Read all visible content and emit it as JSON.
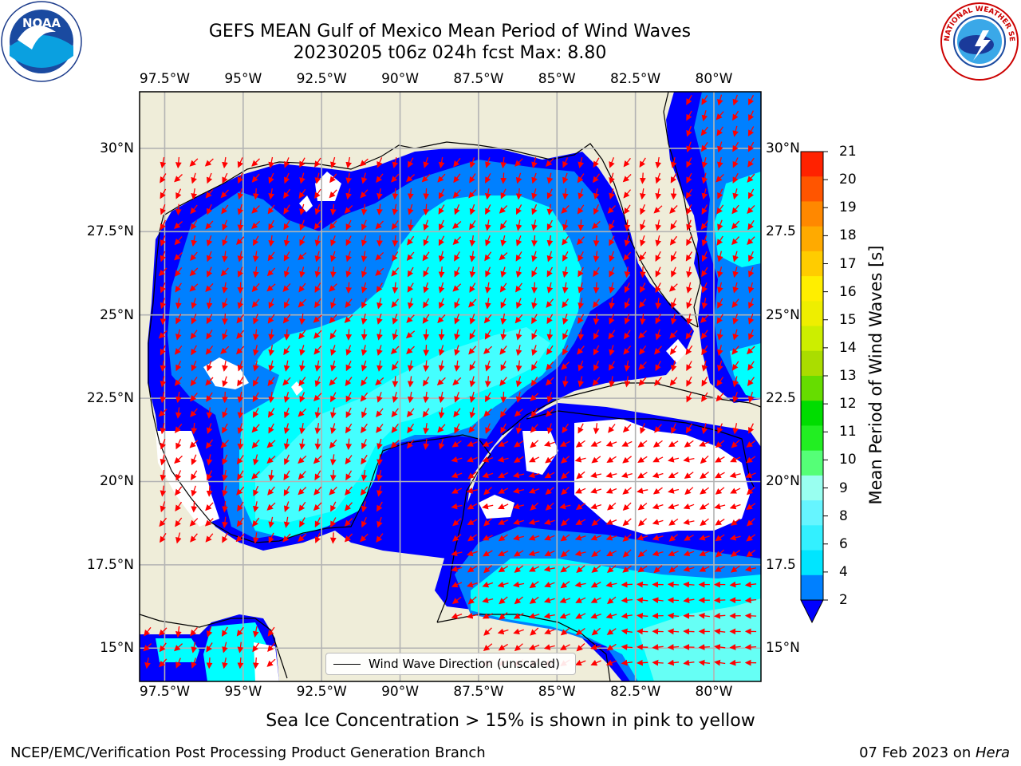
{
  "title": {
    "line1": "GEFS MEAN Gulf of Mexico Mean Period of Wind Waves",
    "line2": "20230205 t06z 024h fcst   Max: 8.80"
  },
  "map": {
    "lon_labels": [
      "97.5°W",
      "95°W",
      "92.5°W",
      "90°W",
      "87.5°W",
      "85°W",
      "82.5°W",
      "80°W"
    ],
    "lat_labels_left": [
      "30°N",
      "27.5°N",
      "25°N",
      "22.5°N",
      "20°N",
      "17.5°N",
      "15°N"
    ],
    "lat_labels_right": [
      "30°N",
      "27.5",
      "25°N",
      "22.5",
      "20°N",
      "17.5",
      "15°N"
    ],
    "lon_range": [
      -98.3,
      -78.5
    ],
    "lat_range": [
      14.0,
      31.7
    ],
    "colors": {
      "land": "#efedd9",
      "ocean_low": "#0000ff",
      "ocean_mid": "#0080ff",
      "ocean_high": "#00ffff",
      "arrows": "#ff0000"
    }
  },
  "legend": {
    "label": "Wind Wave Direction (unscaled)"
  },
  "colorbar": {
    "label": "Mean Period of Wind Waves [s]",
    "ticks": [
      "2",
      "4",
      "6",
      "8",
      "9",
      "10",
      "11",
      "12",
      "13",
      "14",
      "15",
      "16",
      "17",
      "18",
      "19",
      "20",
      "21"
    ],
    "colors": [
      "#0080ff",
      "#00e5ff",
      "#33f0ff",
      "#66f5ff",
      "#99fff0",
      "#55ff77",
      "#22ee22",
      "#00dd00",
      "#66dd00",
      "#aadd00",
      "#ccee00",
      "#eeee00",
      "#ffee00",
      "#ffcc00",
      "#ffaa00",
      "#ff8800",
      "#ff5500",
      "#ff2200"
    ],
    "extend_color": "#0000ff"
  },
  "subcaption": "Sea Ice Concentration > 15% is shown in pink to yellow",
  "footer": {
    "left": "NCEP/EMC/Verification Post Processing Product Generation Branch",
    "right_date": "07 Feb 2023 on ",
    "right_host": "Hera"
  },
  "logos": {
    "left": "NOAA",
    "right": "NATIONAL WEATHER SERVICE"
  }
}
